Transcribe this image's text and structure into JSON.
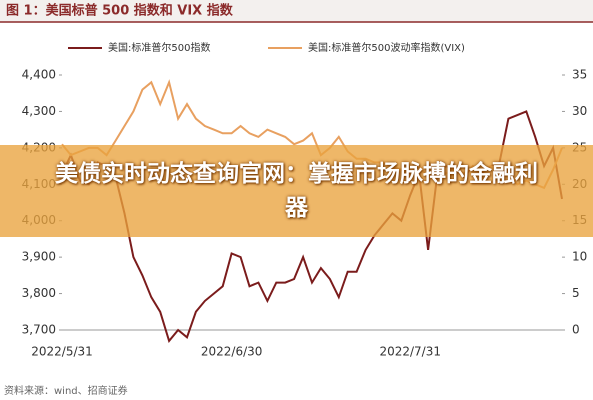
{
  "chart_data": {
    "type": "line",
    "title": "图 1：美国标普 500 指数和 VIX 指数",
    "source": "资料来源：wind、招商证券",
    "categories": [
      "2022/5/31",
      null,
      null,
      null,
      null,
      null,
      null,
      null,
      null,
      null,
      null,
      null,
      null,
      null,
      null,
      null,
      null,
      null,
      null,
      "2022/6/30",
      null,
      null,
      null,
      null,
      null,
      null,
      null,
      null,
      null,
      null,
      null,
      null,
      null,
      null,
      null,
      null,
      null,
      null,
      null,
      "2022/7/31",
      null,
      null,
      null,
      null,
      null,
      null,
      null,
      null,
      null,
      null,
      null,
      null,
      null,
      null,
      null,
      null,
      null
    ],
    "series": [
      {
        "name": "美国:标准普尔500指数",
        "color": "#7b1c1c",
        "values": [
          4130,
          4180,
          4110,
          4100,
          4160,
          4150,
          4120,
          4020,
          3900,
          3850,
          3790,
          3750,
          3670,
          3700,
          3680,
          3750,
          3780,
          3800,
          3820,
          3910,
          3900,
          3820,
          3830,
          3780,
          3830,
          3830,
          3840,
          3900,
          3830,
          3870,
          3840,
          3790,
          3860,
          3860,
          3920,
          3960,
          3990,
          4020,
          4000,
          4070,
          4130,
          3920,
          4120,
          4150,
          4140,
          4120,
          4150,
          4130,
          4150,
          4160,
          4280,
          4290,
          4300,
          4230,
          4150,
          4200,
          4060
        ]
      },
      {
        "name": "美国:标准普尔500波动率指数(VIX)",
        "color": "#e8a060",
        "axis": "y2",
        "values": [
          25.5,
          24,
          24.5,
          25,
          25,
          24,
          26,
          28,
          30,
          33,
          34,
          31,
          34,
          29,
          31,
          29,
          28,
          27.5,
          27,
          27,
          28,
          27,
          26.5,
          27.5,
          27,
          26.5,
          25.5,
          26,
          27,
          24,
          25,
          26.5,
          24.5,
          23.5,
          23.5,
          23,
          23,
          22.5,
          22,
          21.5,
          22.5,
          21,
          21.5,
          21.5,
          22,
          21.5,
          22.5,
          22,
          22.5,
          21.5,
          21,
          20,
          20.5,
          20,
          19.5,
          22,
          25
        ]
      }
    ],
    "ylim": [
      3700,
      4400
    ],
    "yticks": [
      {
        "value": 3700,
        "label": "3,700"
      },
      {
        "value": 3800,
        "label": "3,800"
      },
      {
        "value": 3900,
        "label": "3,900"
      },
      {
        "value": 4000,
        "label": "4,000"
      },
      {
        "value": 4100,
        "label": "4,100"
      },
      {
        "value": 4200,
        "label": "4,200"
      },
      {
        "value": 4300,
        "label": "4,300"
      },
      {
        "value": 4400,
        "label": "4,400"
      }
    ],
    "y2lim": [
      0,
      35
    ],
    "y2ticks": [
      0,
      5,
      10,
      15,
      20,
      25,
      30,
      35
    ]
  },
  "banner": {
    "text": "美债实时动态查询官网：掌握市场脉搏的金融利器"
  }
}
